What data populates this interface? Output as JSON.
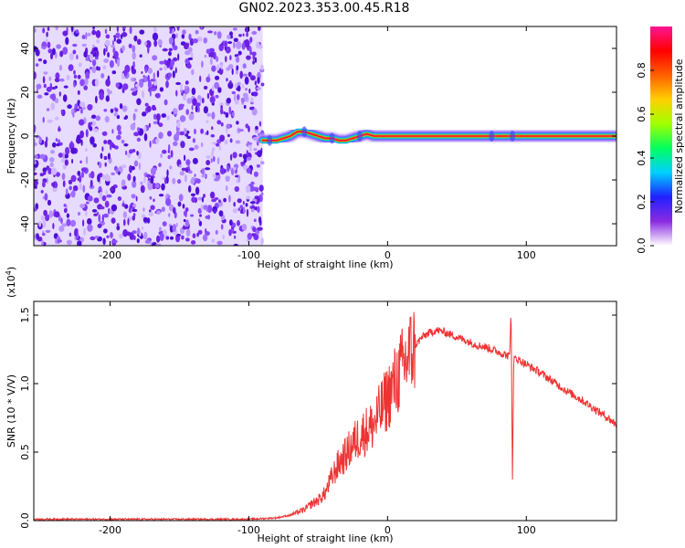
{
  "title": "GN02.2023.353.00.45.R18",
  "chart_data": [
    {
      "type": "heatmap",
      "xlabel": "Height of straight line (km)",
      "ylabel": "Frequency (Hz)",
      "xlim": [
        -255,
        165
      ],
      "ylim": [
        -50,
        50
      ],
      "xticks": [
        -200,
        -100,
        0,
        100
      ],
      "yticks": [
        -40,
        -20,
        0,
        20,
        40
      ],
      "noise_region_x": [
        -255,
        -90
      ],
      "ridge": {
        "x": [
          -90,
          -80,
          -75,
          -70,
          -65,
          -60,
          -55,
          -50,
          -45,
          -40,
          -35,
          -30,
          -25,
          -20,
          -15,
          -10,
          0,
          20,
          60,
          75,
          90,
          120,
          165
        ],
        "freq": [
          -2,
          -2,
          -1,
          0,
          2,
          2,
          1,
          0,
          -1,
          -1,
          -2,
          -2,
          -1,
          0,
          1,
          0,
          0,
          0,
          0,
          0,
          0,
          0,
          0
        ]
      },
      "colorbar": {
        "label": "Normalized spectral amplitude",
        "ticks": [
          "0.0",
          "0.2",
          "0.4",
          "0.6",
          "0.8"
        ],
        "range": [
          0,
          1
        ],
        "colors": [
          "#ffffff",
          "#8a2be2",
          "#2020ff",
          "#00d0ff",
          "#00ff60",
          "#a0ff00",
          "#ffd000",
          "#ff6000",
          "#ff0000",
          "#ff1493"
        ]
      }
    },
    {
      "type": "line",
      "xlabel": "Height of straight line (km)",
      "ylabel": "SNR (10 * V/V)",
      "multiplier": "(x10",
      "multiplier_exp": "4",
      "multiplier_close": ")",
      "xlim": [
        -255,
        165
      ],
      "ylim": [
        0,
        1.6
      ],
      "xticks": [
        -200,
        -100,
        0,
        100
      ],
      "yticks": [
        "0.0",
        "0.5",
        "1.0",
        "1.5"
      ],
      "color": "#ee3333",
      "series": [
        {
          "x": [
            -255,
            -200,
            -150,
            -100,
            -80,
            -70,
            -65,
            -60,
            -55,
            -50,
            -45,
            -40,
            -35,
            -30,
            -25,
            -20,
            -15,
            -10,
            -5,
            0,
            5,
            10,
            15,
            20,
            25,
            30,
            35,
            40,
            45,
            50,
            55,
            60,
            65,
            70,
            75,
            80,
            85,
            88,
            89,
            90,
            91,
            92,
            95,
            100,
            110,
            120,
            130,
            140,
            150,
            160,
            165
          ],
          "values": [
            0.01,
            0.01,
            0.01,
            0.01,
            0.02,
            0.04,
            0.06,
            0.08,
            0.12,
            0.15,
            0.2,
            0.32,
            0.42,
            0.48,
            0.56,
            0.62,
            0.66,
            0.7,
            0.8,
            0.9,
            1.0,
            1.1,
            1.2,
            1.28,
            1.34,
            1.37,
            1.39,
            1.38,
            1.36,
            1.34,
            1.32,
            1.3,
            1.28,
            1.27,
            1.25,
            1.23,
            1.21,
            1.2,
            1.55,
            0.3,
            1.2,
            1.19,
            1.17,
            1.14,
            1.08,
            1.01,
            0.94,
            0.88,
            0.81,
            0.74,
            0.7
          ]
        }
      ]
    }
  ]
}
